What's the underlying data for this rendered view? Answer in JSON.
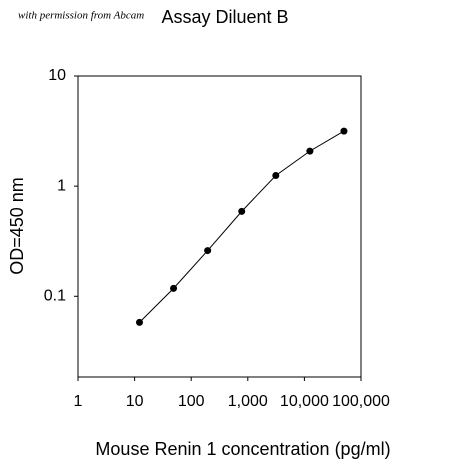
{
  "chart_data": {
    "type": "line",
    "title": "Assay Diluent B",
    "watermark": "with permission from Abcam",
    "x_label": "Mouse Renin 1 concentration (pg/ml)",
    "y_label": "OD=450 nm",
    "x": [
      12.2,
      48.8,
      195.3,
      781.3,
      3125,
      12500,
      50000
    ],
    "series": [
      {
        "name": "Assay Diluent B",
        "color": "#000000",
        "values": [
          0.058,
          0.118,
          0.26,
          0.59,
          1.25,
          2.08,
          3.16
        ]
      }
    ],
    "xscale": "log",
    "yscale": "log",
    "xlim": [
      1,
      100000
    ],
    "ylim": [
      0.0185,
      10
    ],
    "xticks": [
      1,
      10,
      100,
      {
        "value": 1000,
        "label": "1,000"
      },
      {
        "value": 10000,
        "label": "10,000"
      },
      {
        "value": 100000,
        "label": "100,000"
      }
    ],
    "yticks": [
      0.1,
      1,
      10
    ],
    "grid": false
  }
}
